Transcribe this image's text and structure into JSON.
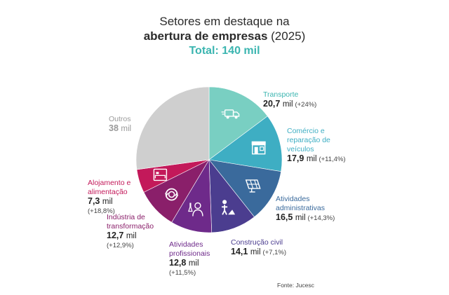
{
  "title": {
    "line1": "Setores em destaque na",
    "line2_bold": "abertura de empresas",
    "line2_rest": "(2025)",
    "total": "Total: 140 mil"
  },
  "source": "Fonte: Jucesc",
  "chart_data": {
    "type": "pie",
    "unit": "mil",
    "slices": [
      {
        "name": "Transporte",
        "value": 20.7,
        "value_label": "20,7",
        "change": "(+24%)",
        "color": "#79cfc2",
        "icon": "truck-icon"
      },
      {
        "name": "Comércio e reparação de veículos",
        "value": 17.9,
        "value_label": "17,9",
        "change": "(+11,4%)",
        "color": "#3eaec3",
        "icon": "storefront-icon"
      },
      {
        "name": "Atividades administrativas",
        "value": 16.5,
        "value_label": "16,5",
        "change": "(+14,3%)",
        "color": "#3a6a9c",
        "icon": "solar-panel-icon"
      },
      {
        "name": "Construção civil",
        "value": 14.1,
        "value_label": "14,1",
        "change": "(+7,1%)",
        "color": "#4b3d8f",
        "icon": "construction-worker-icon"
      },
      {
        "name": "Atividades profissionais",
        "value": 12.8,
        "value_label": "12,8",
        "change": "(+11,5%)",
        "color": "#6e2a8a",
        "icon": "scientist-icon"
      },
      {
        "name": "Indústria de transformação",
        "value": 12.7,
        "value_label": "12,7",
        "change": "(+12,9%)",
        "color": "#8a1f6a",
        "icon": "recycle-icon"
      },
      {
        "name": "Alojamento e alimentação",
        "value": 7.3,
        "value_label": "7,3",
        "change": "(+18,8%)",
        "color": "#c3195a",
        "icon": "hotel-bed-icon"
      },
      {
        "name": "Outros",
        "value": 38,
        "value_label": "38",
        "change": "",
        "color": "#cfcfcf",
        "icon": ""
      }
    ]
  }
}
